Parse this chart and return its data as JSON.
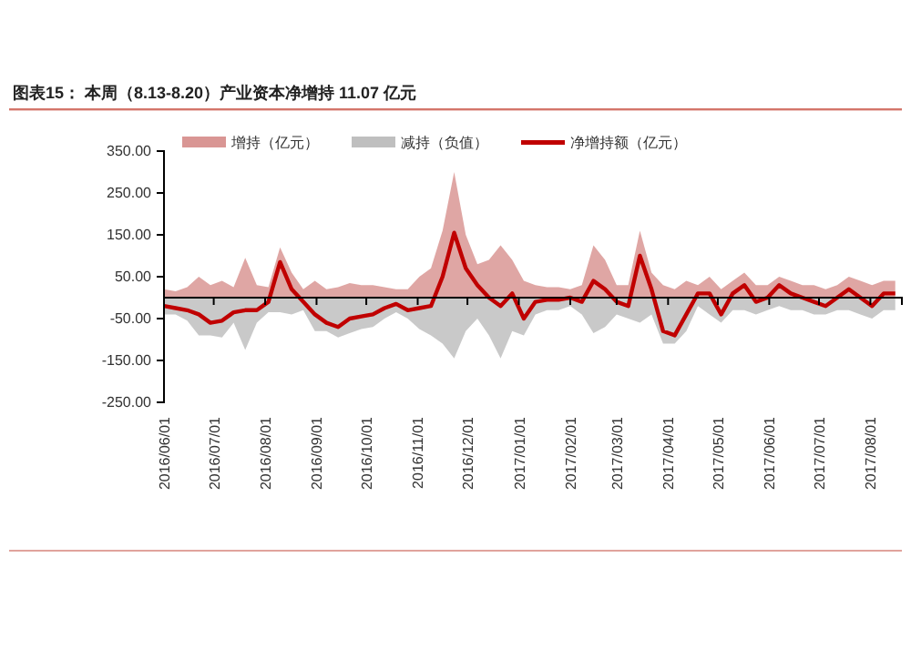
{
  "chart_data": {
    "type": "area",
    "title": "图表15： 本周（8.13-8.20）产业资本净增持 11.07 亿元",
    "x": [
      "2016-06-01",
      "2016-06-08",
      "2016-06-15",
      "2016-06-22",
      "2016-06-29",
      "2016-07-06",
      "2016-07-13",
      "2016-07-20",
      "2016-07-27",
      "2016-08-03",
      "2016-08-10",
      "2016-08-17",
      "2016-08-24",
      "2016-08-31",
      "2016-09-07",
      "2016-09-14",
      "2016-09-21",
      "2016-09-28",
      "2016-10-05",
      "2016-10-12",
      "2016-10-19",
      "2016-10-26",
      "2016-11-02",
      "2016-11-09",
      "2016-11-16",
      "2016-11-23",
      "2016-11-30",
      "2016-12-07",
      "2016-12-14",
      "2016-12-21",
      "2016-12-28",
      "2017-01-04",
      "2017-01-11",
      "2017-01-18",
      "2017-01-25",
      "2017-02-01",
      "2017-02-08",
      "2017-02-15",
      "2017-02-22",
      "2017-03-01",
      "2017-03-08",
      "2017-03-15",
      "2017-03-22",
      "2017-03-29",
      "2017-04-05",
      "2017-04-12",
      "2017-04-19",
      "2017-04-26",
      "2017-05-03",
      "2017-05-10",
      "2017-05-17",
      "2017-05-24",
      "2017-05-31",
      "2017-06-07",
      "2017-06-14",
      "2017-06-21",
      "2017-06-28",
      "2017-07-05",
      "2017-07-12",
      "2017-07-19",
      "2017-07-26",
      "2017-08-02",
      "2017-08-09",
      "2017-08-16"
    ],
    "series": [
      {
        "name": "增持（亿元）",
        "color": "#d99694",
        "values": [
          20,
          15,
          25,
          50,
          30,
          40,
          25,
          95,
          30,
          25,
          120,
          60,
          20,
          40,
          20,
          25,
          35,
          30,
          30,
          25,
          20,
          20,
          50,
          70,
          160,
          300,
          150,
          80,
          90,
          125,
          90,
          40,
          30,
          25,
          25,
          20,
          30,
          125,
          90,
          30,
          30,
          160,
          60,
          30,
          20,
          40,
          30,
          50,
          20,
          40,
          60,
          30,
          30,
          50,
          40,
          30,
          30,
          20,
          30,
          50,
          40,
          30,
          40,
          40
        ]
      },
      {
        "name": "减持（负值）",
        "color": "#bfbfbf",
        "values": [
          -40,
          -40,
          -55,
          -90,
          -90,
          -95,
          -60,
          -125,
          -60,
          -35,
          -35,
          -40,
          -30,
          -80,
          -80,
          -95,
          -85,
          -75,
          -70,
          -50,
          -35,
          -50,
          -75,
          -90,
          -110,
          -145,
          -80,
          -50,
          -90,
          -145,
          -80,
          -90,
          -40,
          -30,
          -30,
          -20,
          -40,
          -85,
          -70,
          -40,
          -50,
          -60,
          -40,
          -110,
          -110,
          -80,
          -20,
          -40,
          -60,
          -30,
          -30,
          -40,
          -30,
          -20,
          -30,
          -30,
          -40,
          -40,
          -30,
          -30,
          -40,
          -50,
          -30,
          -30
        ]
      },
      {
        "name": "净增持额（亿元）",
        "type": "line",
        "color": "#c00000",
        "values": [
          -20,
          -25,
          -30,
          -40,
          -60,
          -55,
          -35,
          -30,
          -30,
          -10,
          85,
          20,
          -10,
          -40,
          -60,
          -70,
          -50,
          -45,
          -40,
          -25,
          -15,
          -30,
          -25,
          -20,
          50,
          155,
          70,
          30,
          0,
          -20,
          10,
          -50,
          -10,
          -5,
          -5,
          0,
          -10,
          40,
          20,
          -10,
          -20,
          100,
          20,
          -80,
          -90,
          -40,
          10,
          10,
          -40,
          10,
          30,
          -10,
          0,
          30,
          10,
          0,
          -10,
          -20,
          0,
          20,
          0,
          -20,
          10,
          10
        ]
      }
    ],
    "xlim": [
      "2016-06-01",
      "2017-08-20"
    ],
    "xticks": [
      {
        "value": "2016-06-01",
        "label": "2016/06/01"
      },
      {
        "value": "2016-07-01",
        "label": "2016/07/01"
      },
      {
        "value": "2016-08-01",
        "label": "2016/08/01"
      },
      {
        "value": "2016-09-01",
        "label": "2016/09/01"
      },
      {
        "value": "2016-10-01",
        "label": "2016/10/01"
      },
      {
        "value": "2016-11-01",
        "label": "2016/11/01"
      },
      {
        "value": "2016-12-01",
        "label": "2016/12/01"
      },
      {
        "value": "2017-01-01",
        "label": "2017/01/01"
      },
      {
        "value": "2017-02-01",
        "label": "2017/02/01"
      },
      {
        "value": "2017-03-01",
        "label": "2017/03/01"
      },
      {
        "value": "2017-04-01",
        "label": "2017/04/01"
      },
      {
        "value": "2017-05-01",
        "label": "2017/05/01"
      },
      {
        "value": "2017-06-01",
        "label": "2017/06/01"
      },
      {
        "value": "2017-07-01",
        "label": "2017/07/01"
      },
      {
        "value": "2017-08-01",
        "label": "2017/08/01"
      }
    ],
    "ylim": [
      -250,
      350
    ],
    "yticks": [
      {
        "value": -250,
        "label": "-250.00"
      },
      {
        "value": -150,
        "label": "-150.00"
      },
      {
        "value": -50,
        "label": "-50.00"
      },
      {
        "value": 50,
        "label": "50.00"
      },
      {
        "value": 150,
        "label": "150.00"
      },
      {
        "value": 250,
        "label": "250.00"
      },
      {
        "value": 350,
        "label": "350.00"
      }
    ],
    "grid": false,
    "legend": "top"
  }
}
